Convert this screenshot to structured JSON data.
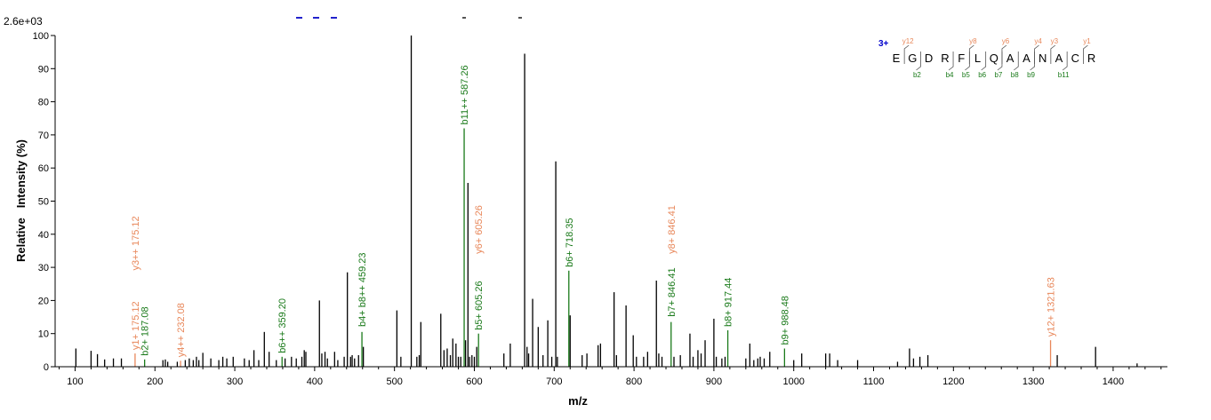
{
  "chart_data": {
    "type": "bar",
    "scale_label": "2.6e+03",
    "xlabel": "m/z",
    "ylabel": "Relative   Intensity (%)",
    "xlim": [
      75,
      1468
    ],
    "ylim": [
      0,
      100
    ],
    "xticks": [
      100,
      200,
      300,
      400,
      500,
      600,
      700,
      800,
      900,
      1000,
      1100,
      1200,
      1300,
      1400
    ],
    "yticks": [
      0,
      10,
      20,
      30,
      40,
      50,
      60,
      70,
      80,
      90,
      100
    ],
    "colors": {
      "b_ion": "#1a7a1a",
      "y_ion": "#e8875a",
      "other": "#000000",
      "charge": "#0000cc"
    },
    "peaks": [
      {
        "mz": 101,
        "i": 5.5
      },
      {
        "mz": 120,
        "i": 4.8
      },
      {
        "mz": 128,
        "i": 3.8
      },
      {
        "mz": 137,
        "i": 2.2
      },
      {
        "mz": 148,
        "i": 2.5
      },
      {
        "mz": 158,
        "i": 2.5
      },
      {
        "mz": 175.12,
        "i": 4,
        "ion": "y"
      },
      {
        "mz": 187.08,
        "i": 2.2,
        "ion": "b"
      },
      {
        "mz": 210,
        "i": 2
      },
      {
        "mz": 213,
        "i": 2.2
      },
      {
        "mz": 216,
        "i": 1.5
      },
      {
        "mz": 228,
        "i": 1.5
      },
      {
        "mz": 232.08,
        "i": 1.8,
        "ion": "y"
      },
      {
        "mz": 238,
        "i": 2
      },
      {
        "mz": 243,
        "i": 2.5
      },
      {
        "mz": 248,
        "i": 2
      },
      {
        "mz": 252,
        "i": 3
      },
      {
        "mz": 255,
        "i": 2
      },
      {
        "mz": 260,
        "i": 4.2
      },
      {
        "mz": 270,
        "i": 2.5
      },
      {
        "mz": 280,
        "i": 2
      },
      {
        "mz": 285,
        "i": 3
      },
      {
        "mz": 290,
        "i": 2.5
      },
      {
        "mz": 298,
        "i": 3
      },
      {
        "mz": 312,
        "i": 2.5
      },
      {
        "mz": 318,
        "i": 2
      },
      {
        "mz": 324,
        "i": 5
      },
      {
        "mz": 330,
        "i": 2
      },
      {
        "mz": 337,
        "i": 10.5
      },
      {
        "mz": 343,
        "i": 4.5
      },
      {
        "mz": 352,
        "i": 2
      },
      {
        "mz": 359.2,
        "i": 3,
        "ion": "b"
      },
      {
        "mz": 363,
        "i": 2.5
      },
      {
        "mz": 371,
        "i": 3
      },
      {
        "mz": 377,
        "i": 2.5
      },
      {
        "mz": 384,
        "i": 3
      },
      {
        "mz": 387,
        "i": 5
      },
      {
        "mz": 389,
        "i": 4.5
      },
      {
        "mz": 406,
        "i": 20
      },
      {
        "mz": 409,
        "i": 4
      },
      {
        "mz": 413,
        "i": 4.5
      },
      {
        "mz": 416,
        "i": 2.5
      },
      {
        "mz": 425,
        "i": 4.5
      },
      {
        "mz": 429,
        "i": 2
      },
      {
        "mz": 437,
        "i": 3
      },
      {
        "mz": 441,
        "i": 28.5
      },
      {
        "mz": 445,
        "i": 3
      },
      {
        "mz": 447,
        "i": 3.5
      },
      {
        "mz": 450,
        "i": 2.5
      },
      {
        "mz": 455,
        "i": 3.5
      },
      {
        "mz": 459.23,
        "i": 10.5,
        "ion": "b"
      },
      {
        "mz": 461,
        "i": 6
      },
      {
        "mz": 503,
        "i": 17
      },
      {
        "mz": 508,
        "i": 3
      },
      {
        "mz": 521,
        "i": 100
      },
      {
        "mz": 528,
        "i": 3
      },
      {
        "mz": 531,
        "i": 3.5
      },
      {
        "mz": 533,
        "i": 13.5
      },
      {
        "mz": 558,
        "i": 16
      },
      {
        "mz": 562,
        "i": 5
      },
      {
        "mz": 566,
        "i": 5.5
      },
      {
        "mz": 570,
        "i": 3.5
      },
      {
        "mz": 573,
        "i": 8.5
      },
      {
        "mz": 577,
        "i": 7
      },
      {
        "mz": 580,
        "i": 3
      },
      {
        "mz": 583,
        "i": 3
      },
      {
        "mz": 587.26,
        "i": 72,
        "ion": "b"
      },
      {
        "mz": 589,
        "i": 8
      },
      {
        "mz": 592,
        "i": 55.5
      },
      {
        "mz": 594,
        "i": 3
      },
      {
        "mz": 597,
        "i": 3.5
      },
      {
        "mz": 600,
        "i": 3
      },
      {
        "mz": 603,
        "i": 6
      },
      {
        "mz": 605.26,
        "i": 10,
        "ion": "b"
      },
      {
        "mz": 637,
        "i": 4
      },
      {
        "mz": 645,
        "i": 7
      },
      {
        "mz": 663,
        "i": 94.5
      },
      {
        "mz": 666,
        "i": 6
      },
      {
        "mz": 668,
        "i": 4
      },
      {
        "mz": 673,
        "i": 20.5
      },
      {
        "mz": 680,
        "i": 12
      },
      {
        "mz": 686,
        "i": 3.5
      },
      {
        "mz": 692,
        "i": 14
      },
      {
        "mz": 697,
        "i": 3
      },
      {
        "mz": 702,
        "i": 62
      },
      {
        "mz": 704,
        "i": 3
      },
      {
        "mz": 718.35,
        "i": 29,
        "ion": "b"
      },
      {
        "mz": 720,
        "i": 15.5
      },
      {
        "mz": 735,
        "i": 3.5
      },
      {
        "mz": 741,
        "i": 4
      },
      {
        "mz": 755,
        "i": 6.5
      },
      {
        "mz": 758,
        "i": 7
      },
      {
        "mz": 775,
        "i": 22.5
      },
      {
        "mz": 778,
        "i": 3.5
      },
      {
        "mz": 790,
        "i": 18.5
      },
      {
        "mz": 799,
        "i": 9.5
      },
      {
        "mz": 803,
        "i": 3
      },
      {
        "mz": 812,
        "i": 3
      },
      {
        "mz": 817,
        "i": 4.5
      },
      {
        "mz": 828,
        "i": 26
      },
      {
        "mz": 831,
        "i": 4
      },
      {
        "mz": 835,
        "i": 3
      },
      {
        "mz": 846.41,
        "i": 13.5,
        "ion": "b"
      },
      {
        "mz": 850,
        "i": 3
      },
      {
        "mz": 858,
        "i": 3.5
      },
      {
        "mz": 870,
        "i": 10
      },
      {
        "mz": 874,
        "i": 3
      },
      {
        "mz": 880,
        "i": 5
      },
      {
        "mz": 884,
        "i": 4
      },
      {
        "mz": 889,
        "i": 8
      },
      {
        "mz": 900,
        "i": 14.5
      },
      {
        "mz": 903,
        "i": 3
      },
      {
        "mz": 910,
        "i": 2.5
      },
      {
        "mz": 914,
        "i": 3
      },
      {
        "mz": 917.44,
        "i": 11,
        "ion": "b"
      },
      {
        "mz": 940,
        "i": 2.5
      },
      {
        "mz": 945,
        "i": 7
      },
      {
        "mz": 950,
        "i": 2
      },
      {
        "mz": 955,
        "i": 2.5
      },
      {
        "mz": 958,
        "i": 3
      },
      {
        "mz": 963,
        "i": 2.5
      },
      {
        "mz": 970,
        "i": 4.5
      },
      {
        "mz": 988.48,
        "i": 5.5,
        "ion": "b"
      },
      {
        "mz": 1000,
        "i": 2
      },
      {
        "mz": 1010,
        "i": 4
      },
      {
        "mz": 1040,
        "i": 4
      },
      {
        "mz": 1045,
        "i": 4
      },
      {
        "mz": 1055,
        "i": 2
      },
      {
        "mz": 1080,
        "i": 2
      },
      {
        "mz": 1130,
        "i": 1.5
      },
      {
        "mz": 1145,
        "i": 5.5
      },
      {
        "mz": 1150,
        "i": 2.5
      },
      {
        "mz": 1158,
        "i": 3
      },
      {
        "mz": 1168,
        "i": 3.5
      },
      {
        "mz": 1321.63,
        "i": 8,
        "ion": "y"
      },
      {
        "mz": 1330,
        "i": 3.5
      },
      {
        "mz": 1378,
        "i": 6
      },
      {
        "mz": 1430,
        "i": 1
      }
    ],
    "annotations": [
      {
        "mz": 175.12,
        "i": 4,
        "ion": "y",
        "label": "y1+ 175.12"
      },
      {
        "mz": 175.12,
        "i": 28,
        "ion": "y",
        "label": "y3++ 175.12"
      },
      {
        "mz": 187.08,
        "i": 2.2,
        "ion": "b",
        "label": "b2+ 187.08"
      },
      {
        "mz": 232.08,
        "i": 1.8,
        "ion": "y",
        "label": "y4++ 232.08"
      },
      {
        "mz": 359.2,
        "i": 3,
        "ion": "b",
        "label": "b6++ 359.20"
      },
      {
        "mz": 459.23,
        "i": 11,
        "ion": "b",
        "label": "b4+ b8++ 459.23"
      },
      {
        "mz": 587.26,
        "i": 72,
        "ion": "b",
        "label": "b11++ 587.26"
      },
      {
        "mz": 605.26,
        "i": 10,
        "ion": "b",
        "label": "b5+ 605.26"
      },
      {
        "mz": 605.26,
        "i": 33,
        "ion": "y",
        "label": "y6+ 605.26"
      },
      {
        "mz": 718.35,
        "i": 29,
        "ion": "b",
        "label": "b6+ 718.35"
      },
      {
        "mz": 846.41,
        "i": 14,
        "ion": "b",
        "label": "b7+ 846.41"
      },
      {
        "mz": 846.41,
        "i": 33,
        "ion": "y",
        "label": "y8+ 846.41"
      },
      {
        "mz": 917.44,
        "i": 11,
        "ion": "b",
        "label": "b8+ 917.44"
      },
      {
        "mz": 988.48,
        "i": 5.5,
        "ion": "b",
        "label": "b9+ 988.48"
      },
      {
        "mz": 1321.63,
        "i": 8,
        "ion": "y",
        "label": "y12+ 1321.63"
      }
    ]
  },
  "sequence_panel": {
    "charge": "3+",
    "residues": [
      "E",
      "G",
      "D",
      "R",
      "F",
      "L",
      "Q",
      "A",
      "A",
      "N",
      "A",
      "C",
      "R"
    ],
    "y_ions": [
      {
        "after": 1,
        "label": "y12"
      },
      {
        "after": 5,
        "label": "y8"
      },
      {
        "after": 7,
        "label": "y6"
      },
      {
        "after": 9,
        "label": "y4"
      },
      {
        "after": 10,
        "label": "y3"
      },
      {
        "after": 12,
        "label": "y1"
      }
    ],
    "b_ions": [
      {
        "after": 2,
        "label": "b2"
      },
      {
        "after": 4,
        "label": "b4"
      },
      {
        "after": 5,
        "label": "b5"
      },
      {
        "after": 6,
        "label": "b6"
      },
      {
        "after": 7,
        "label": "b7"
      },
      {
        "after": 8,
        "label": "b8"
      },
      {
        "after": 9,
        "label": "b9"
      },
      {
        "after": 11,
        "label": "b11"
      }
    ]
  }
}
